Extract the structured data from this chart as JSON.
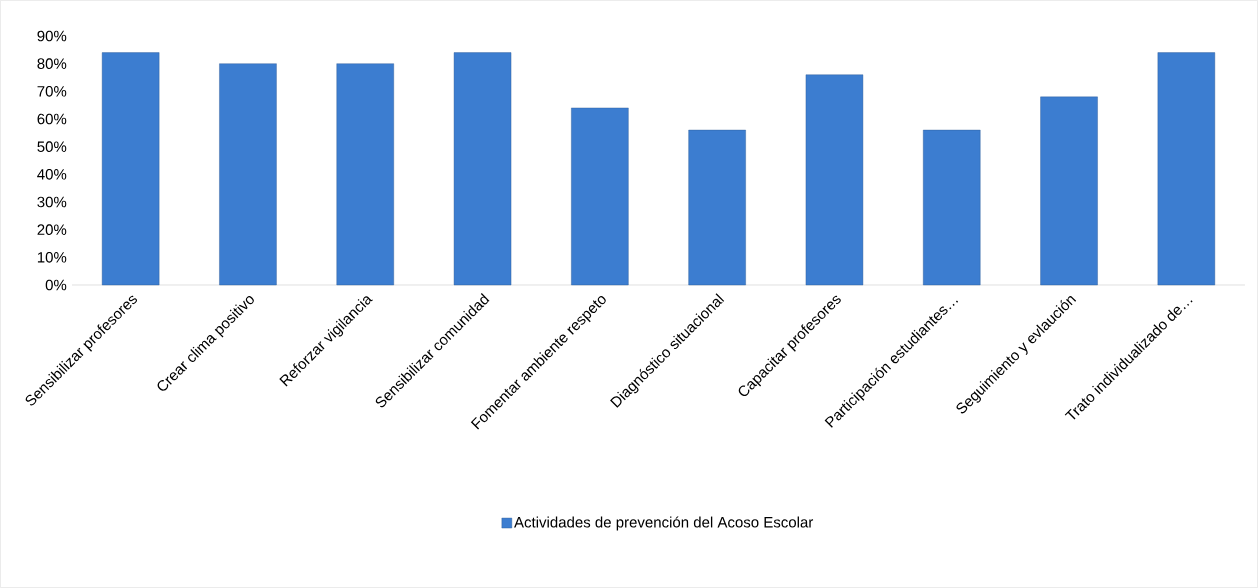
{
  "chart_data": {
    "type": "bar",
    "categories": [
      "Sensibilizar profesores",
      "Crear clima positivo",
      "Reforzar vigilancia",
      "Sensibilizar comunidad",
      "Fomentar ambiente respeto",
      "Diagnóstico situacional",
      "Capacitar profesores",
      "Participación estudiantes…",
      "Seguimiento y evlaución",
      "Trato individualizado de…"
    ],
    "series": [
      {
        "name": "Actividades de prevención del Acoso Escolar",
        "color": "#3c7dd0",
        "values": [
          84,
          80,
          80,
          84,
          64,
          56,
          76,
          56,
          68,
          84
        ]
      }
    ],
    "ylim": [
      0,
      90
    ],
    "yticks": [
      {
        "value": 0,
        "label": "0%"
      },
      {
        "value": 10,
        "label": "10%"
      },
      {
        "value": 20,
        "label": "20%"
      },
      {
        "value": 30,
        "label": "30%"
      },
      {
        "value": 40,
        "label": "40%"
      },
      {
        "value": 50,
        "label": "50%"
      },
      {
        "value": 60,
        "label": "60%"
      },
      {
        "value": 70,
        "label": "70%"
      },
      {
        "value": 80,
        "label": "80%"
      },
      {
        "value": 90,
        "label": "90%"
      }
    ],
    "legend": "bottom",
    "grid": false
  }
}
